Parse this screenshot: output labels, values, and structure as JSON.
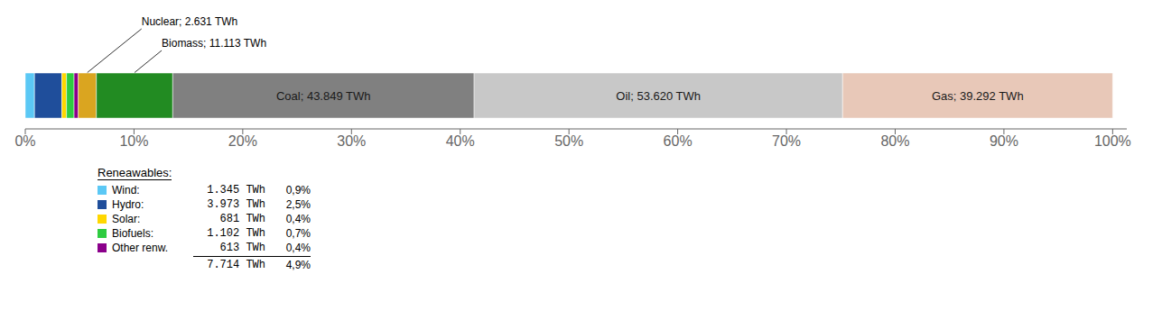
{
  "chart_data": {
    "type": "bar",
    "orientation": "horizontal",
    "stacked": true,
    "categories": [
      null
    ],
    "series": [
      {
        "color": "#5BC8F5",
        "values": [
          0.850088
        ]
      },
      {
        "color": "#1F4E9B",
        "values": [
          2.511076
        ]
      },
      {
        "color": "#FFD700",
        "values": [
          0.430416
        ]
      },
      {
        "color": "#2ECC40",
        "values": [
          0.696503
        ]
      },
      {
        "color": "#8B008B",
        "values": [
          0.387438
        ]
      },
      {
        "color": "#DAA520",
        "values": [
          1.662885
        ],
        "annotation": "Nuclear; 2.631 TWh"
      },
      {
        "color": "#228B22",
        "values": [
          7.023809
        ],
        "annotation": "Biomass; 11.113 TWh"
      },
      {
        "color": "#808080",
        "values": [
          27.714118
        ],
        "label": "Coal; 43.849 TWh"
      },
      {
        "color": "#C8C8C8",
        "values": [
          33.889735
        ],
        "label": "Oil; 53.620 TWh"
      },
      {
        "color": "#E8C8B8",
        "values": [
          24.833933
        ],
        "label": "Gas; 39.292 TWh"
      }
    ],
    "xlim": [
      0,
      101.3
    ],
    "xticks": [
      {
        "value": 0,
        "label": "0%"
      },
      {
        "value": 10,
        "label": "10%"
      },
      {
        "value": 20,
        "label": "20%"
      },
      {
        "value": 30,
        "label": "30%"
      },
      {
        "value": 40,
        "label": "40%"
      },
      {
        "value": 50,
        "label": "50%"
      },
      {
        "value": 60,
        "label": "60%"
      },
      {
        "value": 70,
        "label": "70%"
      },
      {
        "value": 80,
        "label": "80%"
      },
      {
        "value": 90,
        "label": "90%"
      },
      {
        "value": 100,
        "label": "100%"
      }
    ],
    "grid": false,
    "tick_labels": "x",
    "table": {
      "title": "Reneawables:",
      "rows": [
        {
          "name": "Wind:",
          "twh": "1.345 TWh",
          "pct": "0,9%",
          "color": "#5BC8F5"
        },
        {
          "name": "Hydro:",
          "twh": "3.973 TWh",
          "pct": "2,5%",
          "color": "#1F4E9B"
        },
        {
          "name": "Solar:",
          "twh": "  681 TWh",
          "pct": "0,4%",
          "color": "#FFD700"
        },
        {
          "name": "Biofuels:",
          "twh": "1.102 TWh",
          "pct": "0,7%",
          "color": "#2ECC40"
        },
        {
          "name": "Other renw.",
          "twh": "  613 TWh",
          "pct": "0,4%",
          "color": "#8B008B"
        }
      ],
      "total": {
        "twh": "7.714 TWh",
        "pct": "4,9%"
      }
    }
  }
}
